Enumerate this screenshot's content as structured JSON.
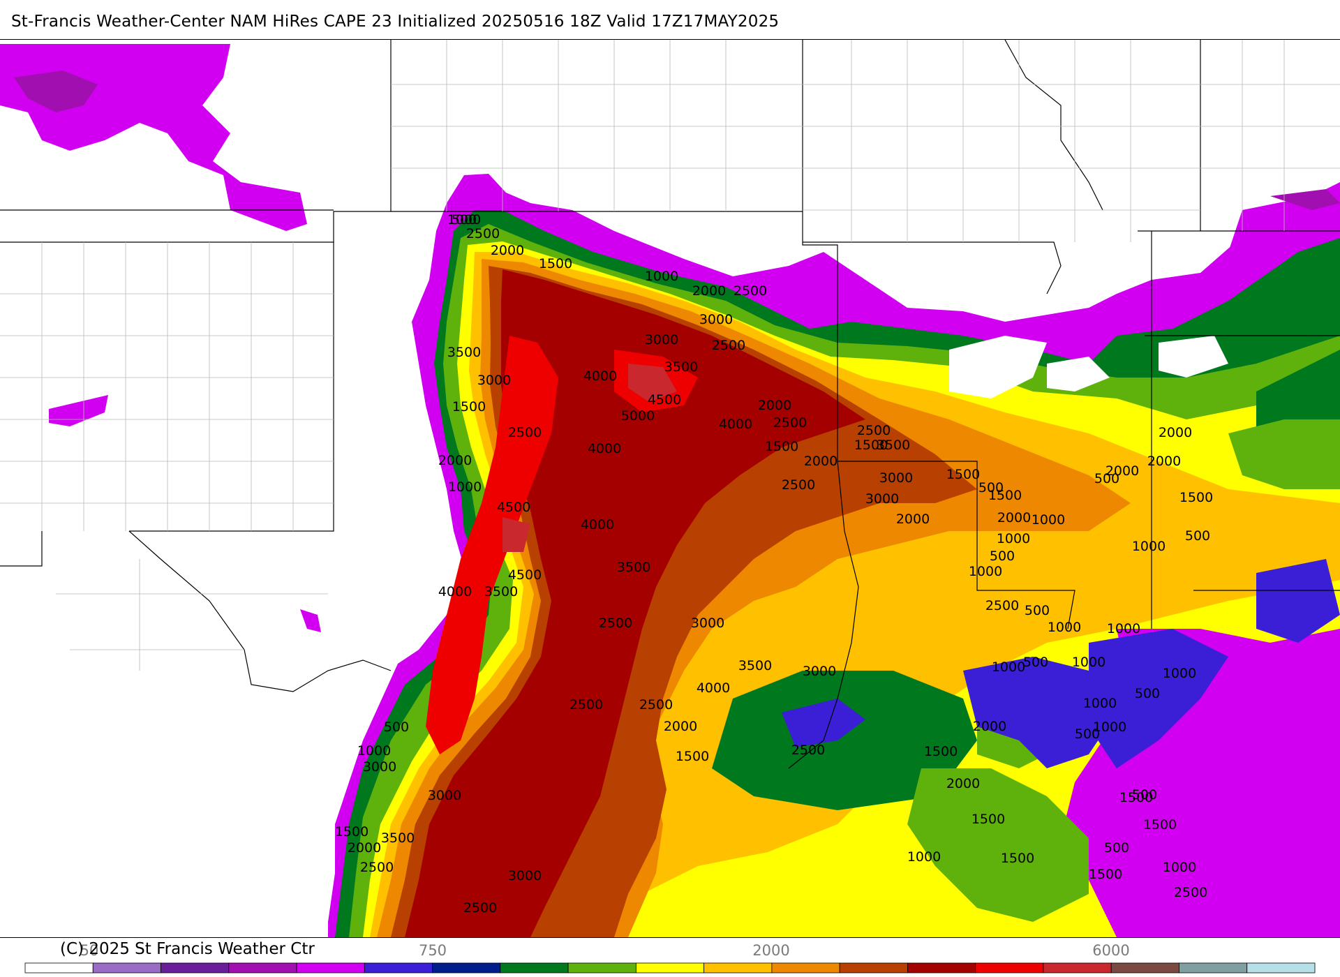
{
  "header": {
    "title": "St-Francis Weather-Center NAM HiRes CAPE  23 Initialized 20250516 18Z Valid 17Z17MAY2025"
  },
  "footer": {
    "copyright": "(C) 2025 St Francis Weather Ctr"
  },
  "colorbar": {
    "tick_labels": [
      "50",
      "750",
      "2000",
      "6000"
    ],
    "colors": [
      "#ffffff",
      "#9b6cc5",
      "#6a1f9a",
      "#a20fb0",
      "#d100f0",
      "#3a1fd6",
      "#001d8c",
      "#00781e",
      "#5fb20c",
      "#ffff00",
      "#ffc000",
      "#ee8800",
      "#b84000",
      "#a50000",
      "#ee0000",
      "#c8282e",
      "#7a4a42",
      "#7f9fa0",
      "#b5e0e8"
    ]
  },
  "map": {
    "palette": {
      "under_500": "#a20fb0",
      "p500": "#d100f0",
      "p1000": "#00781e",
      "p1500": "#5fb20c",
      "p2000": "#ffff00",
      "p2500": "#ffc000",
      "p3000": "#ee8800",
      "p3500": "#b84000",
      "p4000": "#a50000",
      "p4500": "#ee0000",
      "blue": "#3a1fd6"
    },
    "contour_labels": [
      "500",
      "2500",
      "2000",
      "1500",
      "1000",
      "2000",
      "2500",
      "3000",
      "3000",
      "2500",
      "3500",
      "4000",
      "4500",
      "5000",
      "3500",
      "3000",
      "1500",
      "2500",
      "4000",
      "4000",
      "2000",
      "1000",
      "4500",
      "4000",
      "3500",
      "4500",
      "3500",
      "4000",
      "3000",
      "2500",
      "3500",
      "4000",
      "2500",
      "2500",
      "2000",
      "1500",
      "500",
      "1000",
      "3000",
      "1500",
      "2000",
      "2500",
      "3000",
      "3500",
      "3000",
      "2500",
      "2500",
      "2000",
      "1500",
      "1500",
      "2000",
      "2500",
      "3500",
      "3000",
      "3000",
      "2500",
      "2000",
      "1500",
      "500",
      "1500",
      "2000",
      "1000",
      "500",
      "1000",
      "2500",
      "3000",
      "2500",
      "2000",
      "2000",
      "1500",
      "1500",
      "1500",
      "1000",
      "1500",
      "2500",
      "2000",
      "2000",
      "2000",
      "500",
      "1000",
      "500",
      "1000",
      "500",
      "1000",
      "1000",
      "1500",
      "500",
      "1000",
      "1000",
      "500",
      "1000",
      "500",
      "1000",
      "1500",
      "1500",
      "1000",
      "500",
      "500",
      "1000",
      "1000"
    ]
  }
}
